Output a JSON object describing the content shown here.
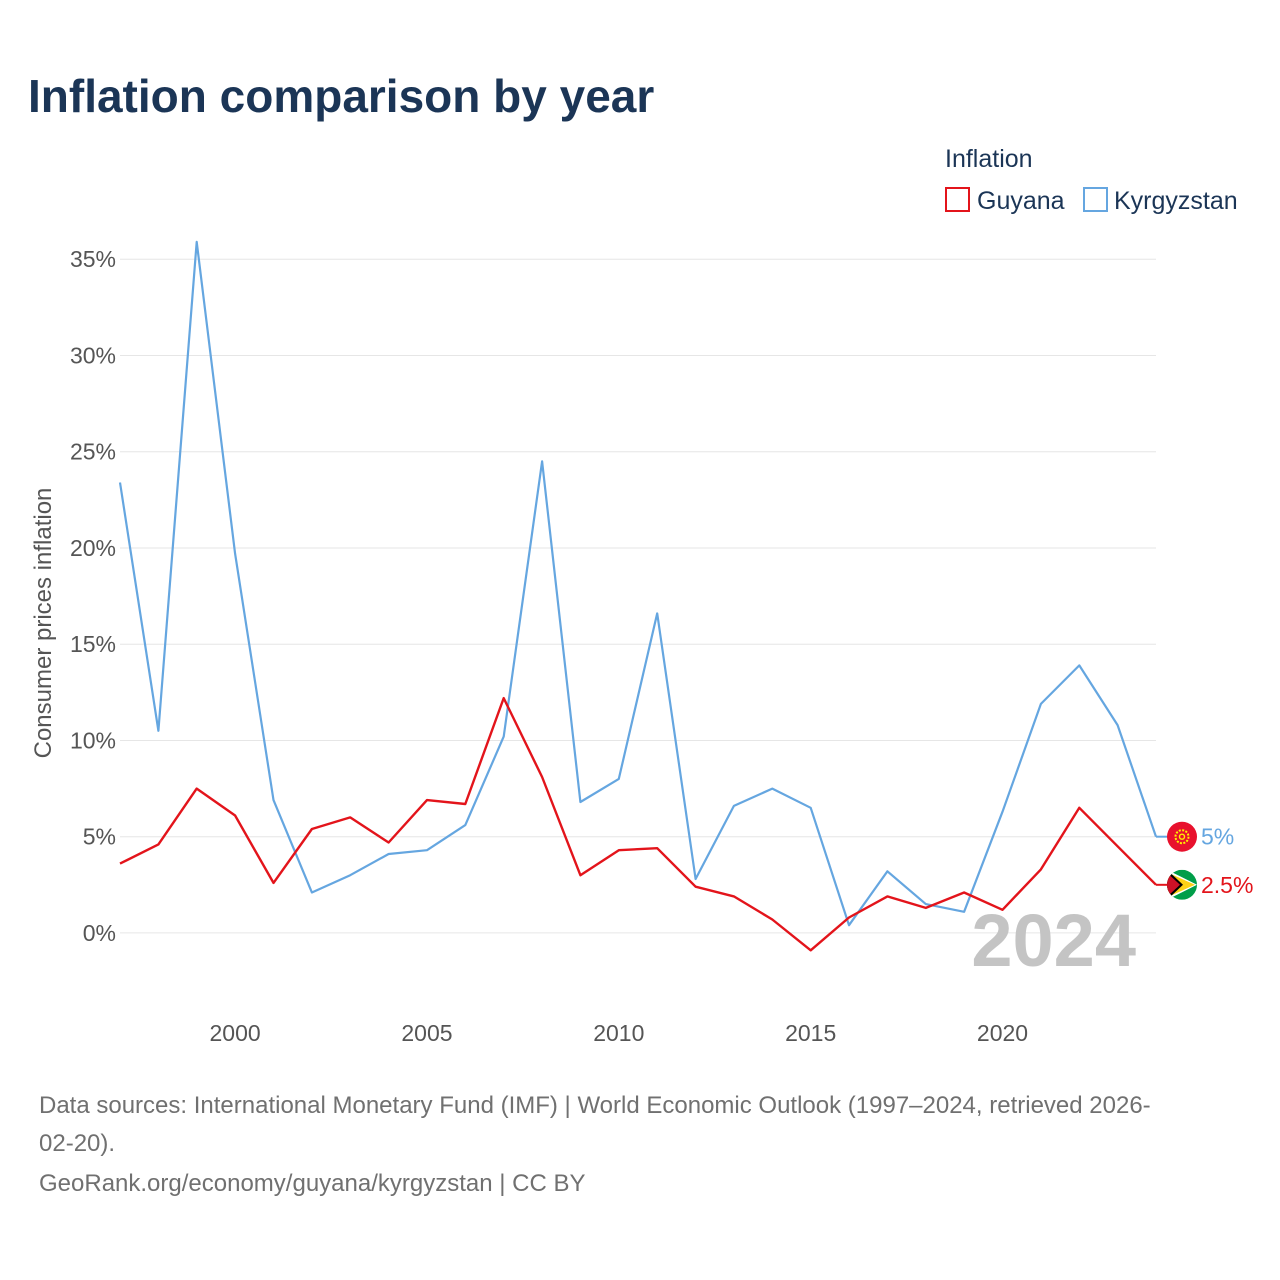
{
  "chart_data": {
    "type": "line",
    "title": "Inflation comparison by year",
    "legend_title": "Inflation",
    "legend_placement": "top-right",
    "ylabel": "Consumer prices inflation",
    "xlabel": "",
    "x": [
      1997,
      1998,
      1999,
      2000,
      2001,
      2002,
      2003,
      2004,
      2005,
      2006,
      2007,
      2008,
      2009,
      2010,
      2011,
      2012,
      2013,
      2014,
      2015,
      2016,
      2017,
      2018,
      2019,
      2020,
      2021,
      2022,
      2023,
      2024
    ],
    "xlim": [
      1997,
      2024
    ],
    "ylim": [
      -3.9,
      36
    ],
    "x_ticks": [
      2000,
      2005,
      2010,
      2015,
      2020
    ],
    "x_tick_labels": [
      "2000",
      "2005",
      "2010",
      "2015",
      "2020"
    ],
    "y_ticks": [
      0,
      5,
      10,
      15,
      20,
      25,
      30,
      35
    ],
    "y_tick_labels": [
      "0%",
      "5%",
      "10%",
      "15%",
      "20%",
      "25%",
      "30%",
      "35%"
    ],
    "grid": true,
    "series": [
      {
        "name": "Guyana",
        "color": "#e3141b",
        "values": [
          3.6,
          4.6,
          7.5,
          6.1,
          2.6,
          5.4,
          6.0,
          4.7,
          6.9,
          6.7,
          12.2,
          8.1,
          3.0,
          4.3,
          4.4,
          2.4,
          1.9,
          0.7,
          -0.9,
          0.8,
          1.9,
          1.3,
          2.1,
          1.2,
          3.3,
          6.5,
          4.5,
          2.5
        ],
        "end_label": "2.5%",
        "flag": "guyana-flag"
      },
      {
        "name": "Kyrgyzstan",
        "color": "#65a6e0",
        "values": [
          23.4,
          10.5,
          35.9,
          19.7,
          6.9,
          2.1,
          3.0,
          4.1,
          4.3,
          5.6,
          10.2,
          24.5,
          6.8,
          8.0,
          16.6,
          2.8,
          6.6,
          7.5,
          6.5,
          0.4,
          3.2,
          1.5,
          1.1,
          6.3,
          11.9,
          13.9,
          10.8,
          5.0
        ],
        "end_label": "5%",
        "flag": "kyrgyzstan-flag"
      }
    ],
    "watermark_year": "2024"
  },
  "footer": {
    "source_line1": "Data sources: International Monetary Fund (IMF) | World Economic Outlook (1997–2024, retrieved 2026-",
    "source_line2": "02-20).",
    "credit": "GeoRank.org/economy/guyana/kyrgyzstan | CC BY"
  }
}
